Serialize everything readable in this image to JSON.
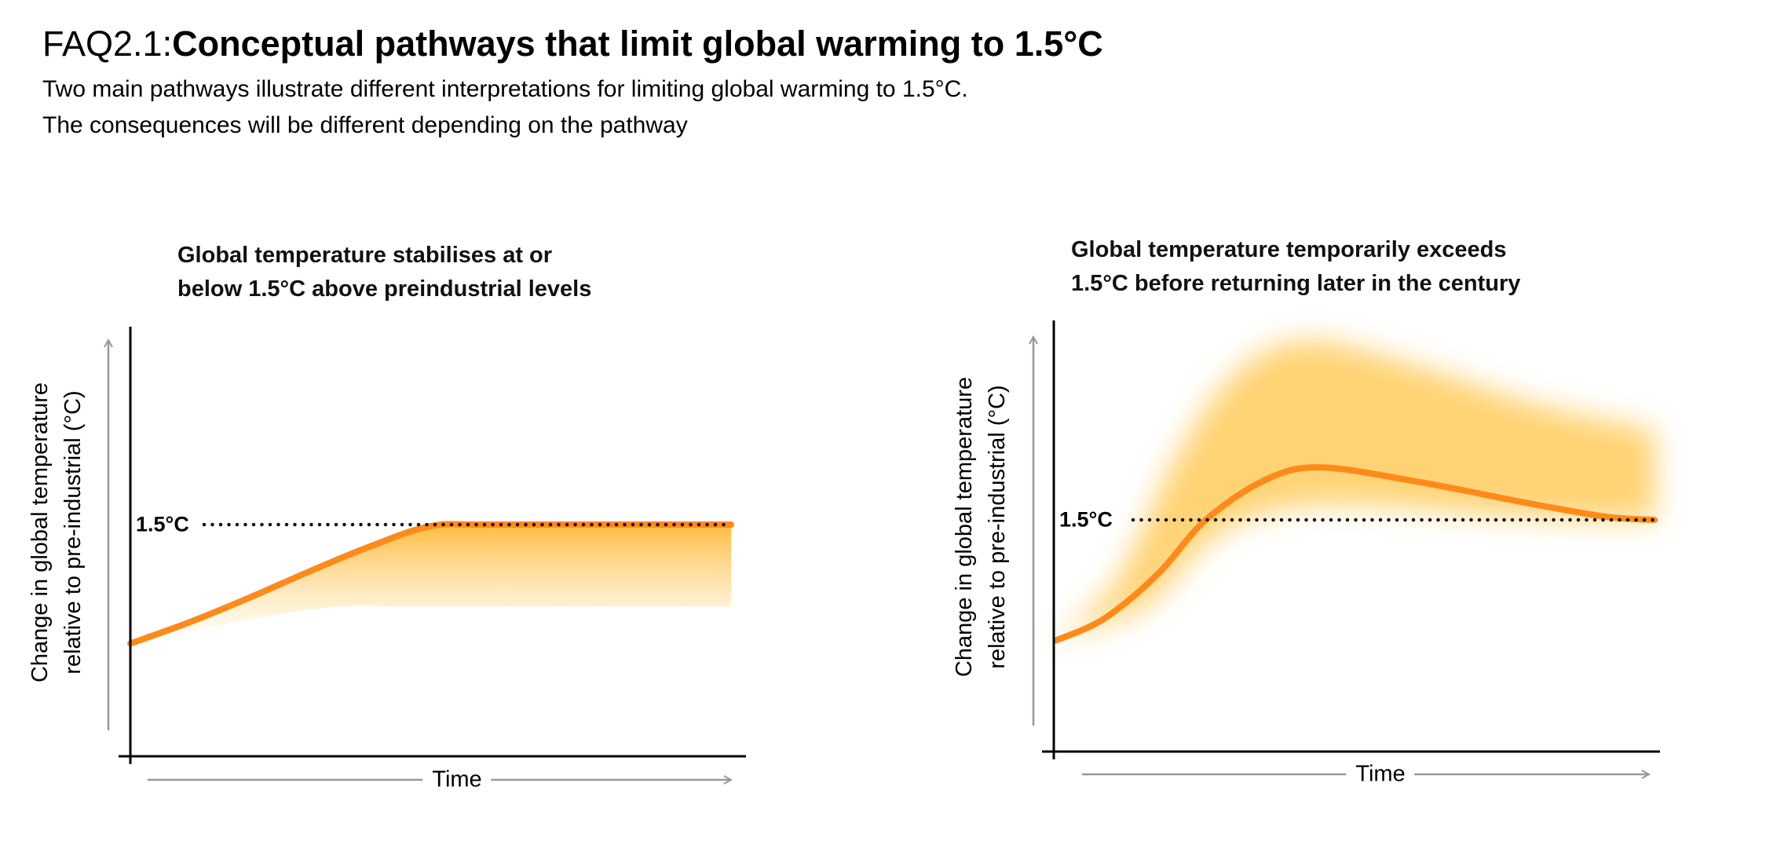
{
  "header": {
    "prefix": "FAQ2.1:",
    "title": "Conceptual pathways that limit global warming to 1.5°C",
    "subtitle_lines": [
      "Two main pathways illustrate different interpretations for limiting global warming to 1.5°C.",
      "The consequences will be different depending on the pathway"
    ]
  },
  "colors": {
    "line": "#ff8a1a",
    "band": "#ffc44a",
    "axis": "#000000",
    "arrow": "#999999"
  },
  "chart_data": [
    {
      "type": "line",
      "title_lines": [
        "Global temperature stabilises at or",
        "below 1.5°C above preindustrial levels"
      ],
      "ylabel_lines": [
        "Change in global temperature",
        "relative to pre-industrial (°C)"
      ],
      "xlabel": "Time",
      "reference": {
        "value": 1.5,
        "label": "1.5°C"
      },
      "xlim": [
        0,
        1
      ],
      "ylim": [
        0,
        2.9
      ],
      "series": [
        {
          "name": "pathway",
          "points": [
            [
              0,
              0.73
            ],
            [
              0.1,
              0.87
            ],
            [
              0.2,
              1.03
            ],
            [
              0.3,
              1.2
            ],
            [
              0.4,
              1.36
            ],
            [
              0.5,
              1.49
            ],
            [
              0.6,
              1.5
            ],
            [
              1,
              1.5
            ]
          ]
        }
      ],
      "band": {
        "upper": [
          [
            0,
            0.73
          ],
          [
            0.1,
            0.87
          ],
          [
            0.2,
            1.03
          ],
          [
            0.3,
            1.2
          ],
          [
            0.4,
            1.36
          ],
          [
            0.5,
            1.49
          ],
          [
            0.6,
            1.5
          ],
          [
            1,
            1.5
          ]
        ],
        "lower": [
          [
            0,
            0.73
          ],
          [
            0.3,
            0.95
          ],
          [
            0.5,
            0.97
          ],
          [
            1,
            0.97
          ]
        ]
      }
    },
    {
      "type": "line",
      "title_lines": [
        "Global temperature temporarily exceeds",
        "1.5°C before returning later in the century"
      ],
      "ylabel_lines": [
        "Change in global temperature",
        "relative to pre-industrial (°C)"
      ],
      "xlabel": "Time",
      "reference": {
        "value": 1.5,
        "label": "1.5°C"
      },
      "xlim": [
        0,
        1
      ],
      "ylim": [
        0,
        2.9
      ],
      "series": [
        {
          "name": "pathway",
          "points": [
            [
              0,
              0.72
            ],
            [
              0.08,
              0.86
            ],
            [
              0.17,
              1.15
            ],
            [
              0.25,
              1.5
            ],
            [
              0.35,
              1.76
            ],
            [
              0.44,
              1.84
            ],
            [
              0.6,
              1.75
            ],
            [
              0.8,
              1.6
            ],
            [
              0.92,
              1.52
            ],
            [
              1,
              1.5
            ]
          ]
        }
      ],
      "band": {
        "upper": [
          [
            0,
            0.72
          ],
          [
            0.1,
            1.1
          ],
          [
            0.2,
            1.9
          ],
          [
            0.3,
            2.45
          ],
          [
            0.42,
            2.66
          ],
          [
            0.6,
            2.5
          ],
          [
            0.8,
            2.25
          ],
          [
            1,
            2.08
          ]
        ],
        "lower": [
          [
            0,
            0.72
          ],
          [
            0.15,
            0.95
          ],
          [
            0.25,
            1.35
          ],
          [
            0.35,
            1.55
          ],
          [
            0.5,
            1.6
          ],
          [
            0.8,
            1.52
          ],
          [
            1,
            1.5
          ]
        ]
      }
    }
  ]
}
